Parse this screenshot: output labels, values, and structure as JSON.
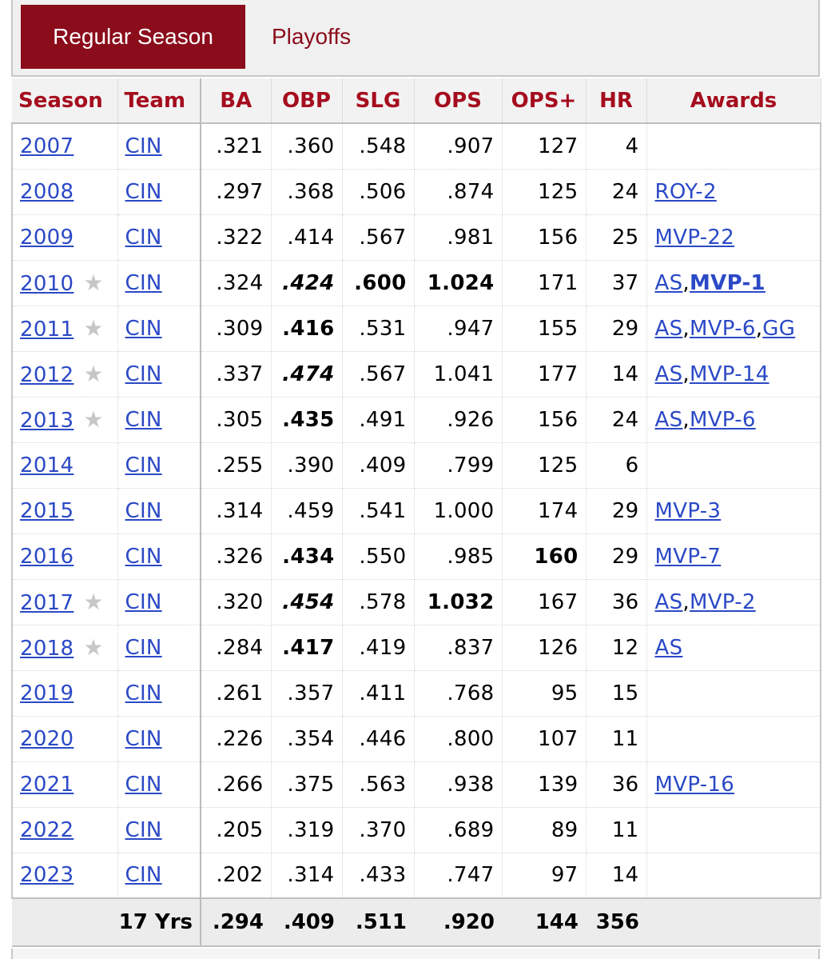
{
  "tabs": {
    "regular_season": "Regular Season",
    "playoffs": "Playoffs"
  },
  "columns": [
    "Season",
    "Team",
    "BA",
    "OBP",
    "SLG",
    "OPS",
    "OPS+",
    "HR",
    "Awards"
  ],
  "star_glyph": "★",
  "rows": [
    {
      "season": "2007",
      "allstar": false,
      "team": "CIN",
      "ba": ".321",
      "obp": ".360",
      "slg": ".548",
      "ops": ".907",
      "ops_plus": "127",
      "hr": "4",
      "awards": []
    },
    {
      "season": "2008",
      "allstar": false,
      "team": "CIN",
      "ba": ".297",
      "obp": ".368",
      "slg": ".506",
      "ops": ".874",
      "ops_plus": "125",
      "hr": "24",
      "awards": [
        {
          "text": "ROY-2"
        }
      ]
    },
    {
      "season": "2009",
      "allstar": false,
      "team": "CIN",
      "ba": ".322",
      "obp": ".414",
      "slg": ".567",
      "ops": ".981",
      "ops_plus": "156",
      "hr": "25",
      "awards": [
        {
          "text": "MVP-22"
        }
      ]
    },
    {
      "season": "2010",
      "allstar": true,
      "team": "CIN",
      "ba": ".324",
      "obp": ".424",
      "obp_style": "bi",
      "slg": ".600",
      "slg_style": "b",
      "ops": "1.024",
      "ops_style": "b",
      "ops_plus": "171",
      "hr": "37",
      "awards": [
        {
          "text": "AS"
        },
        {
          "text": "MVP-1",
          "bold": true
        }
      ]
    },
    {
      "season": "2011",
      "allstar": true,
      "team": "CIN",
      "ba": ".309",
      "obp": ".416",
      "obp_style": "b",
      "slg": ".531",
      "ops": ".947",
      "ops_plus": "155",
      "hr": "29",
      "awards": [
        {
          "text": "AS"
        },
        {
          "text": "MVP-6"
        },
        {
          "text": "GG"
        }
      ]
    },
    {
      "season": "2012",
      "allstar": true,
      "team": "CIN",
      "ba": ".337",
      "obp": ".474",
      "obp_style": "bi",
      "slg": ".567",
      "ops": "1.041",
      "ops_plus": "177",
      "hr": "14",
      "awards": [
        {
          "text": "AS"
        },
        {
          "text": "MVP-14"
        }
      ]
    },
    {
      "season": "2013",
      "allstar": true,
      "team": "CIN",
      "ba": ".305",
      "obp": ".435",
      "obp_style": "b",
      "slg": ".491",
      "ops": ".926",
      "ops_plus": "156",
      "hr": "24",
      "awards": [
        {
          "text": "AS"
        },
        {
          "text": "MVP-6"
        }
      ]
    },
    {
      "season": "2014",
      "allstar": false,
      "team": "CIN",
      "ba": ".255",
      "obp": ".390",
      "slg": ".409",
      "ops": ".799",
      "ops_plus": "125",
      "hr": "6",
      "awards": []
    },
    {
      "season": "2015",
      "allstar": false,
      "team": "CIN",
      "ba": ".314",
      "obp": ".459",
      "slg": ".541",
      "ops": "1.000",
      "ops_plus": "174",
      "hr": "29",
      "awards": [
        {
          "text": "MVP-3"
        }
      ]
    },
    {
      "season": "2016",
      "allstar": false,
      "team": "CIN",
      "ba": ".326",
      "obp": ".434",
      "obp_style": "b",
      "slg": ".550",
      "ops": ".985",
      "ops_plus": "160",
      "ops_plus_style": "b",
      "hr": "29",
      "awards": [
        {
          "text": "MVP-7"
        }
      ]
    },
    {
      "season": "2017",
      "allstar": true,
      "team": "CIN",
      "ba": ".320",
      "obp": ".454",
      "obp_style": "bi",
      "slg": ".578",
      "ops": "1.032",
      "ops_style": "b",
      "ops_plus": "167",
      "hr": "36",
      "awards": [
        {
          "text": "AS"
        },
        {
          "text": "MVP-2"
        }
      ]
    },
    {
      "season": "2018",
      "allstar": true,
      "team": "CIN",
      "ba": ".284",
      "obp": ".417",
      "obp_style": "b",
      "slg": ".419",
      "ops": ".837",
      "ops_plus": "126",
      "hr": "12",
      "awards": [
        {
          "text": "AS"
        }
      ]
    },
    {
      "season": "2019",
      "allstar": false,
      "team": "CIN",
      "ba": ".261",
      "obp": ".357",
      "slg": ".411",
      "ops": ".768",
      "ops_plus": "95",
      "hr": "15",
      "awards": []
    },
    {
      "season": "2020",
      "allstar": false,
      "team": "CIN",
      "ba": ".226",
      "obp": ".354",
      "slg": ".446",
      "ops": ".800",
      "ops_plus": "107",
      "hr": "11",
      "awards": []
    },
    {
      "season": "2021",
      "allstar": false,
      "team": "CIN",
      "ba": ".266",
      "obp": ".375",
      "slg": ".563",
      "ops": ".938",
      "ops_plus": "139",
      "hr": "36",
      "awards": [
        {
          "text": "MVP-16"
        }
      ]
    },
    {
      "season": "2022",
      "allstar": false,
      "team": "CIN",
      "ba": ".205",
      "obp": ".319",
      "slg": ".370",
      "ops": ".689",
      "ops_plus": "89",
      "hr": "11",
      "awards": []
    },
    {
      "season": "2023",
      "allstar": false,
      "team": "CIN",
      "ba": ".202",
      "obp": ".314",
      "slg": ".433",
      "ops": ".747",
      "ops_plus": "97",
      "hr": "14",
      "awards": []
    }
  ],
  "totals": {
    "label": "17 Yrs",
    "ba": ".294",
    "obp": ".409",
    "slg": ".511",
    "ops": ".920",
    "ops_plus": "144",
    "hr": "356"
  },
  "colors": {
    "accent": "#8b0c1b",
    "header_text": "#a50d1e",
    "link": "#2b49c6",
    "star": "#c7c7c7"
  }
}
